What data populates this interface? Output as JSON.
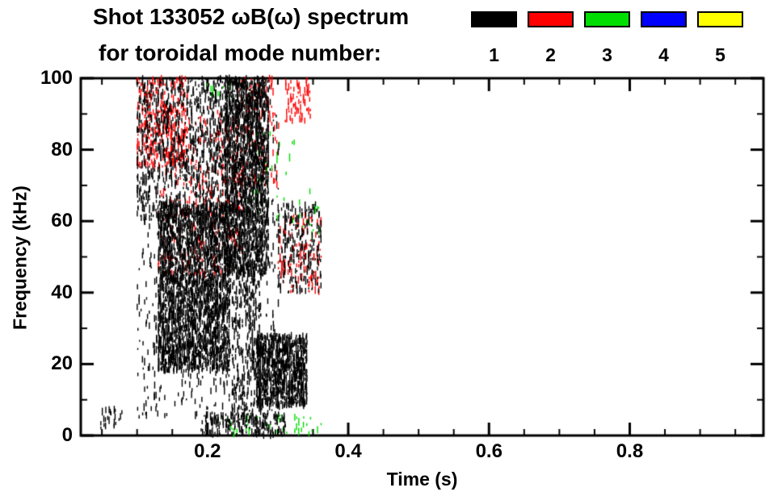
{
  "title": {
    "line1": "Shot 133052 ωB(ω) spectrum",
    "line2": "for toroidal mode number:"
  },
  "legend": {
    "entries": [
      {
        "label": "1",
        "color": "#000000"
      },
      {
        "label": "2",
        "color": "#ff0000"
      },
      {
        "label": "3",
        "color": "#00dd00"
      },
      {
        "label": "4",
        "color": "#0000ff"
      },
      {
        "label": "5",
        "color": "#ffff00"
      }
    ]
  },
  "chart_data": {
    "type": "scatter",
    "title": "Shot 133052 ωB(ω) spectrum for toroidal mode number: 1 2 3 4 5",
    "xlabel": "Time (s)",
    "ylabel": "Frequency (kHz)",
    "xlim": [
      0.02,
      0.99
    ],
    "ylim": [
      0,
      100
    ],
    "xticks": [
      0.2,
      0.4,
      0.6,
      0.8
    ],
    "yticks": [
      0,
      20,
      40,
      60,
      80,
      100
    ],
    "x_minor_step": 0.05,
    "y_minor_step": 10,
    "grid": false,
    "legend_position": "top-right",
    "frame_color": "#000000",
    "background": "#ffffff",
    "note": "Dense spectrogram-style scatter; each cluster gives a region {t0,t1,f0,f1} in (s, kHz) and approximate point count n. Modes 4 and 5 have no visible points.",
    "series": [
      {
        "name": "n=2",
        "color": "#ff0000",
        "clusters": [
          {
            "t0": 0.1,
            "t1": 0.17,
            "f0": 75,
            "f1": 100,
            "n": 320
          },
          {
            "t0": 0.13,
            "t1": 0.25,
            "f0": 45,
            "f1": 92,
            "n": 360
          },
          {
            "t0": 0.24,
            "t1": 0.3,
            "f0": 70,
            "f1": 100,
            "n": 150
          },
          {
            "t0": 0.3,
            "t1": 0.36,
            "f0": 40,
            "f1": 62,
            "n": 130
          },
          {
            "t0": 0.31,
            "t1": 0.345,
            "f0": 88,
            "f1": 100,
            "n": 70
          }
        ]
      },
      {
        "name": "n=3",
        "color": "#00dd00",
        "clusters": [
          {
            "t0": 0.22,
            "t1": 0.36,
            "f0": 0,
            "f1": 6,
            "n": 40
          },
          {
            "t0": 0.25,
            "t1": 0.33,
            "f0": 60,
            "f1": 85,
            "n": 30
          },
          {
            "t0": 0.2,
            "t1": 0.24,
            "f0": 94,
            "f1": 100,
            "n": 12
          },
          {
            "t0": 0.33,
            "t1": 0.36,
            "f0": 55,
            "f1": 70,
            "n": 15
          }
        ]
      },
      {
        "name": "n=1",
        "color": "#000000",
        "clusters": [
          {
            "t0": 0.045,
            "t1": 0.078,
            "f0": 2,
            "f1": 8,
            "n": 22
          },
          {
            "t0": 0.1,
            "t1": 0.3,
            "f0": 5,
            "f1": 100,
            "n": 900
          },
          {
            "t0": 0.1,
            "t1": 0.23,
            "f0": 60,
            "f1": 100,
            "n": 750
          },
          {
            "t0": 0.13,
            "t1": 0.23,
            "f0": 18,
            "f1": 65,
            "n": 2500
          },
          {
            "t0": 0.225,
            "t1": 0.285,
            "f0": 45,
            "f1": 100,
            "n": 1800
          },
          {
            "t0": 0.235,
            "t1": 0.275,
            "f0": 5,
            "f1": 45,
            "n": 280
          },
          {
            "t0": 0.27,
            "t1": 0.34,
            "f0": 8,
            "f1": 28,
            "n": 900
          },
          {
            "t0": 0.3,
            "t1": 0.36,
            "f0": 40,
            "f1": 65,
            "n": 240
          },
          {
            "t0": 0.19,
            "t1": 0.31,
            "f0": 0,
            "f1": 6,
            "n": 200
          }
        ]
      }
    ]
  }
}
